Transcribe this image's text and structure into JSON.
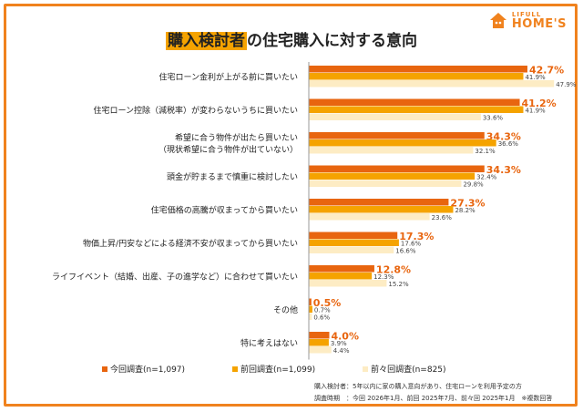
{
  "brand": {
    "small": "LIFULL",
    "big": "HOME'S"
  },
  "title": {
    "highlight": "購入検討者",
    "rest": "の住宅購入に対する意向"
  },
  "colors": {
    "current": "#e8650f",
    "previous": "#f5a300",
    "before_previous": "#fdecc4"
  },
  "chart_data": {
    "type": "bar",
    "orientation": "horizontal",
    "title": "購入検討者の住宅購入に対する意向",
    "categories": [
      [
        "住宅ローン金利が上がる前に買いたい"
      ],
      [
        "住宅ローン控除（減税率）が変わらないうちに買いたい"
      ],
      [
        "希望に合う物件が出たら買いたい",
        "（現状希望に合う物件が出ていない）"
      ],
      [
        "頭金が貯まるまで慎重に検討したい"
      ],
      [
        "住宅価格の高騰が収まってから買いたい"
      ],
      [
        "物価上昇/円安などによる経済不安が収まってから買いたい"
      ],
      [
        "ライフイベント（結婚、出産、子の進学など）に合わせて買いたい"
      ],
      [
        "その他"
      ],
      [
        "特に考えはない"
      ]
    ],
    "series": [
      {
        "name": "今回調査(n=1,097)",
        "values": [
          42.7,
          41.2,
          34.3,
          34.3,
          27.3,
          17.3,
          12.8,
          0.5,
          4.0
        ],
        "labels": [
          "42.7%",
          "41.2%",
          "34.3%",
          "34.3%",
          "27.3%",
          "17.3%",
          "12.8%",
          "0.5%",
          "4.0%"
        ]
      },
      {
        "name": "前回調査(n=1,099)",
        "values": [
          41.9,
          41.9,
          36.6,
          32.4,
          28.2,
          17.6,
          12.3,
          0.7,
          3.9
        ],
        "labels": [
          "41.9%",
          "41.9%",
          "36.6%",
          "32.4%",
          "28.2%",
          "17.6%",
          "12.3%",
          "0.7%",
          "3.9%"
        ]
      },
      {
        "name": "前々回調査(n=825)",
        "values": [
          47.9,
          33.6,
          32.1,
          29.8,
          23.6,
          16.6,
          15.2,
          0.6,
          4.4
        ],
        "labels": [
          "47.9%",
          "33.6%",
          "32.1%",
          "29.8%",
          "23.6%",
          "16.6%",
          "15.2%",
          "0.6%",
          "4.4%"
        ]
      }
    ],
    "xlim": [
      0,
      50
    ],
    "grid": false,
    "legend": "bottom"
  },
  "notes": {
    "line1": "購入検討者：5年以内に家の購入意向があり、住宅ローンを利用予定の方",
    "line2": "調査時期　：今回 2026年1月、前回 2025年7月、前々回 2025年1月　※複数回答"
  }
}
